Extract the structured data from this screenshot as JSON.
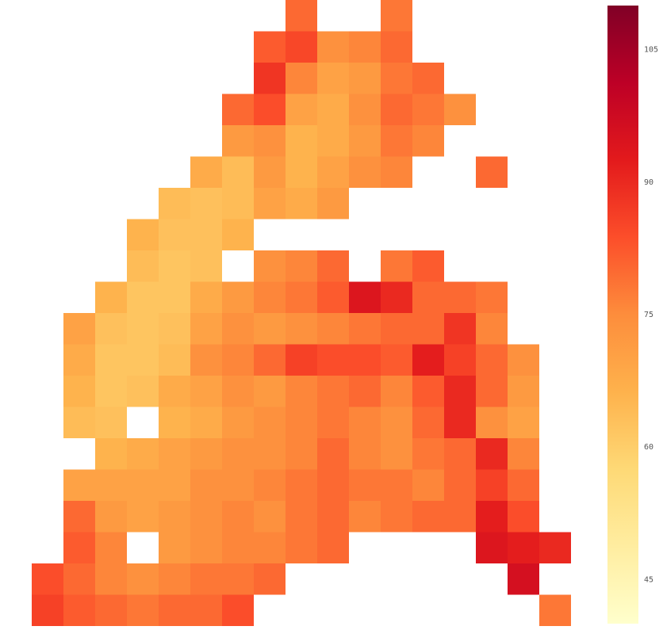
{
  "chart_data": {
    "type": "heatmap",
    "clim": [
      40,
      110
    ],
    "colorbar_ticks": [
      45,
      60,
      75,
      90,
      105
    ],
    "colors": [
      "#ffffcc",
      "#ffeda0",
      "#fed976",
      "#feb24c",
      "#fd8d3c",
      "#fc4e2a",
      "#e31a1c",
      "#bd0026",
      "#800026"
    ],
    "z": [
      [
        null,
        null,
        null,
        null,
        null,
        null,
        null,
        null,
        null,
        80,
        null,
        null,
        78,
        null,
        null,
        null,
        null,
        null
      ],
      [
        null,
        null,
        null,
        null,
        null,
        null,
        null,
        null,
        82,
        85,
        74,
        76,
        80,
        null,
        null,
        null,
        null,
        null
      ],
      [
        null,
        null,
        null,
        null,
        null,
        null,
        null,
        null,
        88,
        76,
        70,
        72,
        78,
        80,
        null,
        null,
        null,
        null
      ],
      [
        null,
        null,
        null,
        null,
        null,
        null,
        null,
        80,
        84,
        70,
        68,
        74,
        80,
        78,
        74,
        null,
        null,
        null
      ],
      [
        null,
        null,
        null,
        null,
        null,
        null,
        null,
        72,
        74,
        66,
        68,
        72,
        78,
        76,
        null,
        null,
        null,
        null
      ],
      [
        null,
        null,
        null,
        null,
        null,
        null,
        68,
        64,
        72,
        66,
        70,
        74,
        76,
        null,
        null,
        80,
        null,
        null
      ],
      [
        null,
        null,
        null,
        null,
        null,
        64,
        63,
        64,
        70,
        68,
        72,
        null,
        null,
        null,
        null,
        null,
        null,
        null
      ],
      [
        null,
        null,
        null,
        null,
        66,
        63,
        63,
        66,
        null,
        null,
        null,
        null,
        null,
        null,
        null,
        null,
        null,
        null
      ],
      [
        null,
        null,
        null,
        null,
        64,
        62,
        63,
        null,
        74,
        76,
        80,
        null,
        78,
        82,
        null,
        null,
        null,
        null
      ],
      [
        null,
        null,
        null,
        66,
        62,
        62,
        68,
        72,
        76,
        78,
        82,
        94,
        90,
        80,
        80,
        78,
        null,
        null
      ],
      [
        null,
        null,
        70,
        63,
        62,
        63,
        70,
        74,
        72,
        74,
        76,
        78,
        80,
        80,
        88,
        76,
        null,
        null
      ],
      [
        null,
        null,
        68,
        62,
        62,
        64,
        74,
        76,
        80,
        86,
        84,
        84,
        82,
        92,
        86,
        80,
        74,
        null
      ],
      [
        null,
        null,
        66,
        62,
        63,
        68,
        70,
        74,
        72,
        76,
        78,
        80,
        76,
        82,
        90,
        80,
        72,
        null
      ],
      [
        null,
        null,
        64,
        63,
        null,
        66,
        68,
        72,
        74,
        76,
        78,
        76,
        74,
        80,
        90,
        74,
        70,
        null
      ],
      [
        null,
        null,
        null,
        66,
        68,
        70,
        72,
        74,
        74,
        76,
        80,
        76,
        74,
        78,
        80,
        90,
        76,
        null
      ],
      [
        null,
        null,
        70,
        70,
        70,
        70,
        74,
        74,
        76,
        78,
        80,
        78,
        78,
        76,
        80,
        86,
        80,
        null
      ],
      [
        null,
        null,
        80,
        72,
        70,
        72,
        74,
        76,
        74,
        78,
        80,
        76,
        78,
        80,
        80,
        92,
        84,
        null
      ],
      [
        null,
        null,
        82,
        76,
        null,
        72,
        74,
        76,
        76,
        78,
        80,
        null,
        null,
        null,
        null,
        94,
        92,
        90
      ],
      [
        null,
        84,
        80,
        76,
        74,
        76,
        78,
        78,
        80,
        null,
        null,
        null,
        null,
        null,
        null,
        null,
        96,
        null
      ],
      [
        null,
        86,
        82,
        80,
        78,
        80,
        80,
        84,
        null,
        null,
        null,
        null,
        null,
        null,
        null,
        null,
        null,
        78
      ]
    ]
  }
}
